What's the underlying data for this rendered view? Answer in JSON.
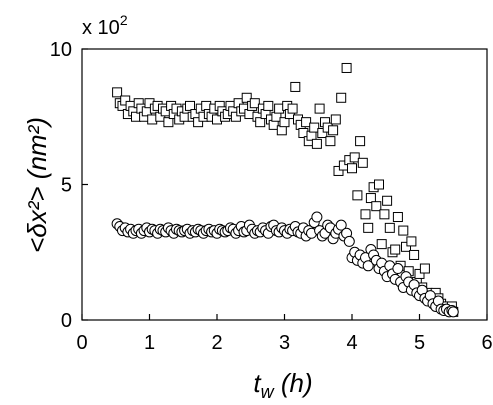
{
  "chart_data": {
    "type": "scatter",
    "xlabel": "t",
    "xlabel_sub": "w",
    "xlabel_unit": " (h)",
    "ylabel": "<δx²> (nm²)",
    "y_multiplier": "x 10",
    "y_multiplier_exp": "2",
    "xlim": [
      0,
      6
    ],
    "ylim": [
      0,
      10
    ],
    "xticks": [
      "0",
      "1",
      "2",
      "3",
      "4",
      "5",
      "6"
    ],
    "yticks": [
      "0",
      "5",
      "10"
    ],
    "grid": false,
    "series": [
      {
        "marker": "square",
        "x": [
          0.52,
          0.56,
          0.6,
          0.64,
          0.68,
          0.72,
          0.76,
          0.8,
          0.84,
          0.88,
          0.92,
          0.96,
          1.0,
          1.04,
          1.08,
          1.12,
          1.16,
          1.2,
          1.24,
          1.28,
          1.32,
          1.36,
          1.4,
          1.44,
          1.48,
          1.52,
          1.56,
          1.6,
          1.64,
          1.68,
          1.72,
          1.76,
          1.8,
          1.84,
          1.88,
          1.92,
          1.96,
          2.0,
          2.04,
          2.08,
          2.12,
          2.16,
          2.2,
          2.24,
          2.28,
          2.32,
          2.36,
          2.4,
          2.44,
          2.48,
          2.52,
          2.56,
          2.6,
          2.64,
          2.68,
          2.72,
          2.76,
          2.8,
          2.84,
          2.88,
          2.92,
          2.96,
          3.0,
          3.04,
          3.08,
          3.12,
          3.16,
          3.2,
          3.24,
          3.28,
          3.32,
          3.36,
          3.4,
          3.44,
          3.48,
          3.52,
          3.56,
          3.6,
          3.64,
          3.68,
          3.72,
          3.76,
          3.8,
          3.84,
          3.88,
          3.92,
          3.96,
          4.0,
          4.04,
          4.08,
          4.12,
          4.16,
          4.2,
          4.24,
          4.28,
          4.32,
          4.36,
          4.4,
          4.44,
          4.48,
          4.52,
          4.56,
          4.6,
          4.64,
          4.68,
          4.72,
          4.76,
          4.8,
          4.84,
          4.88,
          4.92,
          4.96,
          5.0,
          5.04,
          5.08,
          5.12,
          5.16,
          5.2,
          5.24,
          5.28,
          5.32,
          5.36,
          5.4,
          5.44,
          5.48,
          5.5
        ],
        "y": [
          8.4,
          8.0,
          7.9,
          8.1,
          7.6,
          7.9,
          7.7,
          7.5,
          8.0,
          7.8,
          7.5,
          7.7,
          8.0,
          7.4,
          7.8,
          7.9,
          7.5,
          7.8,
          7.7,
          7.3,
          7.9,
          7.6,
          7.8,
          7.4,
          7.7,
          7.5,
          7.8,
          7.9,
          7.5,
          7.6,
          7.3,
          7.8,
          7.5,
          7.9,
          7.6,
          7.5,
          7.8,
          7.4,
          7.9,
          7.7,
          7.5,
          7.6,
          7.9,
          7.7,
          7.5,
          8.0,
          7.7,
          7.8,
          8.2,
          7.6,
          7.9,
          8.0,
          7.5,
          7.3,
          7.8,
          7.6,
          7.9,
          7.4,
          7.2,
          7.5,
          7.8,
          7.0,
          7.3,
          7.9,
          7.6,
          7.8,
          8.6,
          7.4,
          7.2,
          6.9,
          7.3,
          6.6,
          6.8,
          7.1,
          6.5,
          7.8,
          6.9,
          7.3,
          7.1,
          6.6,
          7.0,
          7.4,
          5.5,
          8.2,
          5.7,
          9.3,
          5.9,
          5.6,
          6.0,
          4.6,
          6.6,
          5.8,
          3.9,
          3.4,
          4.5,
          4.9,
          4.2,
          5.0,
          2.8,
          3.9,
          4.4,
          3.4,
          2.5,
          2.6,
          3.8,
          2.0,
          3.3,
          2.7,
          1.8,
          2.9,
          2.4,
          1.4,
          1.7,
          1.2,
          1.9,
          1.0,
          0.9,
          0.8,
          1.0,
          0.8,
          0.6,
          0.5,
          0.4,
          0.4,
          0.5,
          0.3
        ]
      },
      {
        "marker": "circle",
        "x": [
          0.52,
          0.56,
          0.6,
          0.64,
          0.68,
          0.72,
          0.76,
          0.8,
          0.84,
          0.88,
          0.92,
          0.96,
          1.0,
          1.04,
          1.08,
          1.12,
          1.16,
          1.2,
          1.24,
          1.28,
          1.32,
          1.36,
          1.4,
          1.44,
          1.48,
          1.52,
          1.56,
          1.6,
          1.64,
          1.68,
          1.72,
          1.76,
          1.8,
          1.84,
          1.88,
          1.92,
          1.96,
          2.0,
          2.04,
          2.08,
          2.12,
          2.16,
          2.2,
          2.24,
          2.28,
          2.32,
          2.36,
          2.4,
          2.44,
          2.48,
          2.52,
          2.56,
          2.6,
          2.64,
          2.68,
          2.72,
          2.76,
          2.8,
          2.84,
          2.88,
          2.92,
          2.96,
          3.0,
          3.04,
          3.08,
          3.12,
          3.16,
          3.2,
          3.24,
          3.28,
          3.32,
          3.36,
          3.4,
          3.44,
          3.48,
          3.52,
          3.56,
          3.6,
          3.64,
          3.68,
          3.72,
          3.76,
          3.8,
          3.84,
          3.88,
          3.92,
          3.96,
          4.0,
          4.04,
          4.08,
          4.12,
          4.16,
          4.2,
          4.24,
          4.28,
          4.32,
          4.36,
          4.4,
          4.44,
          4.48,
          4.52,
          4.56,
          4.6,
          4.64,
          4.68,
          4.72,
          4.76,
          4.8,
          4.84,
          4.88,
          4.92,
          4.96,
          5.0,
          5.04,
          5.08,
          5.12,
          5.16,
          5.2,
          5.24,
          5.28,
          5.32,
          5.36,
          5.4,
          5.44,
          5.48,
          5.5
        ],
        "y": [
          3.55,
          3.45,
          3.3,
          3.4,
          3.25,
          3.35,
          3.2,
          3.3,
          3.35,
          3.2,
          3.3,
          3.4,
          3.25,
          3.35,
          3.3,
          3.2,
          3.35,
          3.3,
          3.25,
          3.4,
          3.3,
          3.2,
          3.35,
          3.3,
          3.25,
          3.3,
          3.35,
          3.2,
          3.3,
          3.25,
          3.35,
          3.3,
          3.2,
          3.3,
          3.35,
          3.25,
          3.3,
          3.2,
          3.35,
          3.3,
          3.25,
          3.3,
          3.4,
          3.35,
          3.2,
          3.3,
          3.45,
          3.25,
          3.3,
          3.5,
          3.35,
          3.2,
          3.3,
          3.25,
          3.4,
          3.3,
          3.2,
          3.45,
          3.5,
          3.3,
          3.25,
          3.4,
          3.3,
          3.2,
          3.35,
          3.3,
          3.45,
          3.25,
          3.2,
          3.4,
          3.1,
          3.3,
          3.2,
          3.6,
          3.8,
          3.3,
          3.1,
          3.2,
          3.5,
          3.4,
          3.0,
          3.2,
          3.35,
          3.5,
          3.1,
          3.2,
          2.9,
          2.3,
          2.5,
          2.2,
          2.4,
          2.1,
          2.3,
          2.0,
          2.6,
          2.4,
          2.2,
          1.9,
          2.1,
          1.8,
          1.6,
          2.0,
          1.7,
          1.5,
          1.9,
          1.4,
          1.2,
          1.6,
          1.4,
          1.1,
          1.3,
          1.0,
          0.9,
          1.1,
          0.8,
          0.7,
          0.9,
          0.6,
          0.5,
          0.7,
          0.4,
          0.35,
          0.4,
          0.3,
          0.35,
          0.3
        ]
      }
    ]
  }
}
